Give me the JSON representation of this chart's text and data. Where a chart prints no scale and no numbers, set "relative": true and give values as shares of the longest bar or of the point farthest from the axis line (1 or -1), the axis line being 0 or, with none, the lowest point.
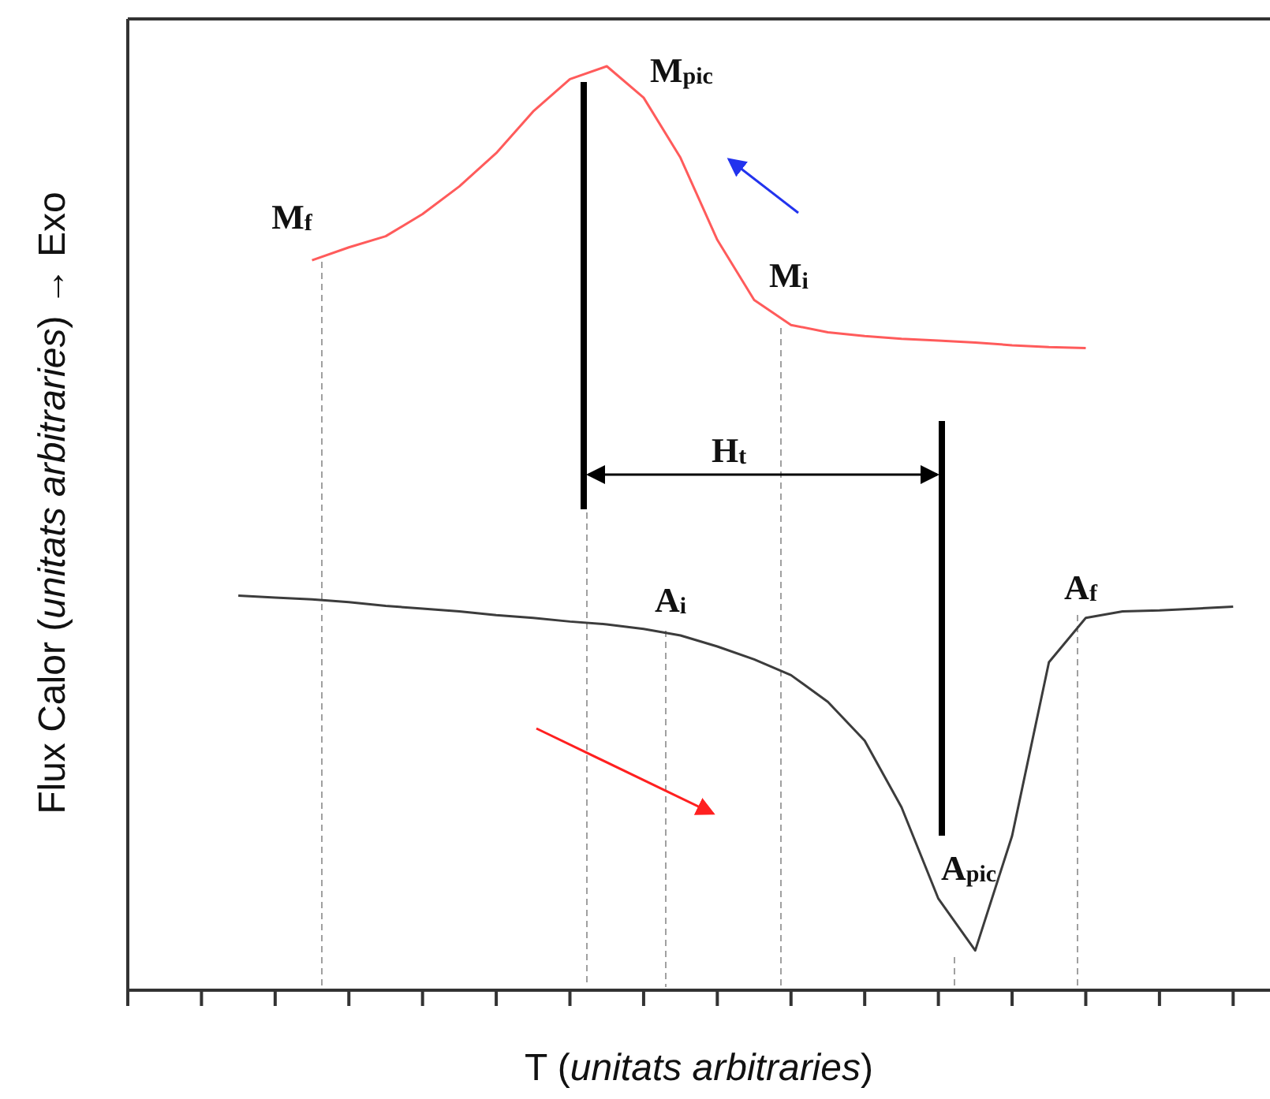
{
  "chart_data": {
    "type": "line",
    "relative": true,
    "xlabel": "T (unitats arbitraries)",
    "ylabel": "Flux Calor (unitats arbitraries) → Exo",
    "categories": [
      null,
      null,
      null,
      null,
      null,
      null,
      null,
      null,
      null,
      null,
      null,
      null,
      null,
      null,
      null,
      null,
      null,
      null,
      null,
      null,
      null,
      null,
      null,
      null,
      null,
      null,
      null,
      null,
      null,
      null,
      null,
      null
    ],
    "series": [
      {
        "color": "#ff5b5b",
        "values": [
          null,
          null,
          null,
          null,
          null,
          0.79,
          0.804,
          0.816,
          0.84,
          0.87,
          0.906,
          0.951,
          0.986,
          1.0,
          0.966,
          0.901,
          0.812,
          0.747,
          0.72,
          0.712,
          0.708,
          0.705,
          0.703,
          0.701,
          0.698,
          0.696,
          0.695,
          null,
          null,
          null,
          null,
          null
        ]
      },
      {
        "color": "#3c3c3c",
        "values": [
          null,
          null,
          null,
          0.427,
          0.425,
          0.423,
          0.42,
          0.416,
          0.413,
          0.41,
          0.406,
          0.403,
          0.399,
          0.396,
          0.391,
          0.384,
          0.372,
          0.358,
          0.341,
          0.312,
          0.27,
          0.198,
          0.099,
          0.043,
          0.167,
          0.355,
          0.403,
          0.41,
          0.411,
          0.413,
          0.415,
          null
        ]
      }
    ],
    "annotations": [
      "M$_{f}$",
      "M$_{pic}$",
      "M$_{i}$",
      "H$_{t}$",
      "A$_{i}$",
      "A$_{f}$",
      "A$_{pic}$"
    ]
  }
}
